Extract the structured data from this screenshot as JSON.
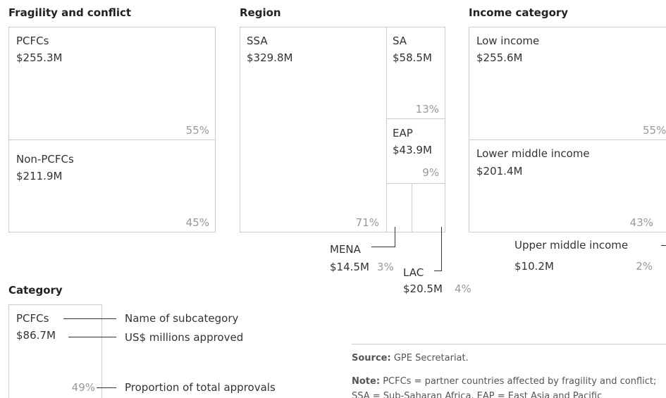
{
  "fragility": {
    "title": "Fragility and conflict",
    "items": [
      {
        "label": "PCFCs",
        "amount": "$255.3M",
        "share": "55%"
      },
      {
        "label": "Non-PCFCs",
        "amount": "$211.9M",
        "share": "45%"
      }
    ]
  },
  "region": {
    "title": "Region",
    "items": [
      {
        "label": "SSA",
        "amount": "$329.8M",
        "share": "71%"
      },
      {
        "label": "SA",
        "amount": "$58.5M",
        "share": "13%"
      },
      {
        "label": "EAP",
        "amount": "$43.9M",
        "share": "9%"
      },
      {
        "label": "MENA",
        "amount": "$14.5M",
        "share": "3%"
      },
      {
        "label": "LAC",
        "amount": "$20.5M",
        "share": "4%"
      }
    ]
  },
  "income": {
    "title": "Income category",
    "items": [
      {
        "label": "Low income",
        "amount": "$255.6M",
        "share": "55%"
      },
      {
        "label": "Lower middle income",
        "amount": "$201.4M",
        "share": "43%"
      },
      {
        "label": "Upper middle income",
        "amount": "$10.2M",
        "share": "2%"
      }
    ]
  },
  "key": {
    "title": "Category",
    "label": "PCFCs",
    "amount": "$86.7M",
    "share": "49%",
    "label_note": "Name of subcategory",
    "amount_note": "US$ millions approved",
    "share_note": "Proportion of total approvals"
  },
  "footer": {
    "source_label": "Source:",
    "source": "GPE Secretariat.",
    "note_label": "Note:",
    "note": "PCFCs = partner countries affected by fragility and conflict; SSA = Sub-Saharan Africa, EAP = East Asia and Pacific"
  }
}
